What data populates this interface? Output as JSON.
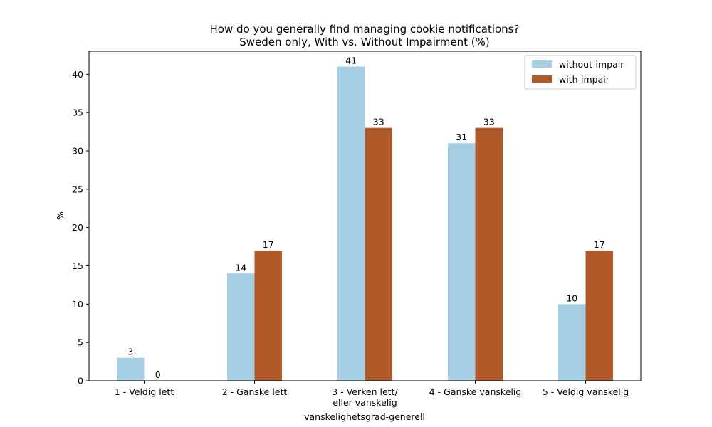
{
  "chart_data": {
    "type": "bar",
    "title": "How do you generally find managing cookie notifications?",
    "subtitle": "Sweden only, With vs. Without Impairment (%)",
    "xlabel": "vanskelighetsgrad-generell",
    "ylabel": "%",
    "ylim": [
      0,
      43
    ],
    "yticks": [
      0,
      5,
      10,
      15,
      20,
      25,
      30,
      35,
      40
    ],
    "categories": [
      [
        "1 - Veldig lett"
      ],
      [
        "2 - Ganske lett"
      ],
      [
        "3 - Verken lett/",
        "eller vanskelig"
      ],
      [
        "4 - Ganske vanskelig"
      ],
      [
        "5 - Veldig vanskelig"
      ]
    ],
    "series": [
      {
        "name": "without-impair",
        "color": "#a6cee3",
        "values": [
          3,
          14,
          41,
          31,
          10
        ]
      },
      {
        "name": "with-impair",
        "color": "#b15928",
        "values": [
          0,
          17,
          33,
          33,
          17
        ]
      }
    ],
    "legend_position": "top-right",
    "grid": false
  }
}
